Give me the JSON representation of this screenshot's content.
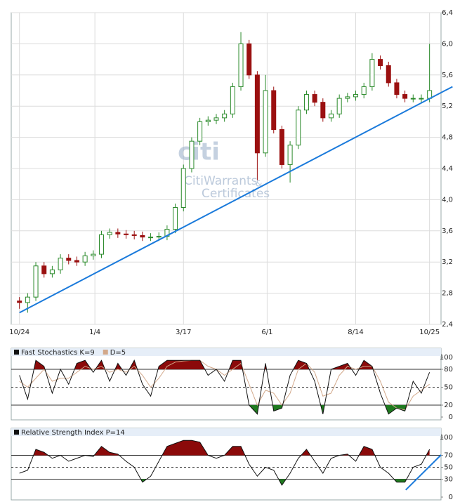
{
  "chart_data": [
    {
      "type": "candlestick",
      "watermark": [
        "citi",
        "CitiWarrants",
        "&",
        "Certificates"
      ],
      "x": [
        0,
        5,
        10,
        15,
        20,
        25,
        30,
        35,
        40,
        45,
        50,
        55,
        60,
        65,
        70,
        75,
        80,
        85,
        90,
        95,
        100,
        105,
        110,
        115,
        120,
        125,
        130,
        135,
        140,
        145,
        150,
        155,
        160,
        165,
        170,
        175,
        180,
        185,
        190,
        195,
        200,
        205,
        210,
        215,
        220,
        225,
        230,
        235,
        240,
        245,
        250
      ],
      "open": [
        2.7,
        2.68,
        2.75,
        3.15,
        3.05,
        3.1,
        3.25,
        3.22,
        3.2,
        3.28,
        3.3,
        3.55,
        3.58,
        3.56,
        3.55,
        3.54,
        3.52,
        3.52,
        3.53,
        3.62,
        3.9,
        4.4,
        4.75,
        5.0,
        5.02,
        5.05,
        5.1,
        5.45,
        6.0,
        5.6,
        4.6,
        5.4,
        4.9,
        4.45,
        4.7,
        5.15,
        5.35,
        5.25,
        5.05,
        5.1,
        5.3,
        5.32,
        5.35,
        5.45,
        5.8,
        5.72,
        5.5,
        5.35,
        5.3,
        5.3,
        5.3
      ],
      "high": [
        2.75,
        2.8,
        3.2,
        3.2,
        3.15,
        3.3,
        3.3,
        3.27,
        3.33,
        3.35,
        3.6,
        3.63,
        3.63,
        3.61,
        3.6,
        3.59,
        3.57,
        3.58,
        3.67,
        3.95,
        4.45,
        4.8,
        5.05,
        5.07,
        5.1,
        5.15,
        5.5,
        6.15,
        6.05,
        5.65,
        5.6,
        5.45,
        4.95,
        4.75,
        5.2,
        5.4,
        5.4,
        5.3,
        5.15,
        5.35,
        5.37,
        5.4,
        5.5,
        5.88,
        5.85,
        5.77,
        5.55,
        5.4,
        5.35,
        5.35,
        6.0
      ],
      "low": [
        2.6,
        2.55,
        2.7,
        3.0,
        3.0,
        3.05,
        3.17,
        3.15,
        3.15,
        3.23,
        3.25,
        3.5,
        3.51,
        3.5,
        3.49,
        3.47,
        3.47,
        3.47,
        3.48,
        3.57,
        3.85,
        4.35,
        4.7,
        4.95,
        4.97,
        5.0,
        5.05,
        5.4,
        5.55,
        4.25,
        4.55,
        4.85,
        4.4,
        4.22,
        4.65,
        5.1,
        5.2,
        5.0,
        5.0,
        5.05,
        5.25,
        5.27,
        5.3,
        5.4,
        5.67,
        5.45,
        5.3,
        5.25,
        5.25,
        5.25,
        5.25
      ],
      "close": [
        2.68,
        2.75,
        3.15,
        3.05,
        3.1,
        3.25,
        3.22,
        3.2,
        3.28,
        3.3,
        3.55,
        3.58,
        3.56,
        3.55,
        3.54,
        3.52,
        3.52,
        3.53,
        3.62,
        3.9,
        4.4,
        4.75,
        5.0,
        5.02,
        5.05,
        5.1,
        5.45,
        6.0,
        5.6,
        4.6,
        5.4,
        4.9,
        4.45,
        4.7,
        5.15,
        5.35,
        5.25,
        5.05,
        5.1,
        5.3,
        5.32,
        5.35,
        5.45,
        5.8,
        5.72,
        5.5,
        5.35,
        5.3,
        5.3,
        5.3,
        5.4
      ],
      "up_color": "#2a8a2a",
      "down_color": "#9b1010",
      "trendline": {
        "x": [
          0,
          264
        ],
        "y": [
          2.55,
          5.45
        ],
        "color": "#1a7adb"
      },
      "xlim": [
        -5,
        257
      ],
      "xticks": [
        {
          "value": 0,
          "label": "10/24"
        },
        {
          "value": 46,
          "label": "1/4"
        },
        {
          "value": 100,
          "label": "3/17"
        },
        {
          "value": 151,
          "label": "6/1"
        },
        {
          "value": 205,
          "label": "8/14"
        },
        {
          "value": 250,
          "label": "10/25"
        }
      ],
      "ylim": [
        2.4,
        6.4
      ],
      "yticks": [
        {
          "value": 2.4,
          "label": "2,4"
        },
        {
          "value": 2.8,
          "label": "2,8"
        },
        {
          "value": 3.2,
          "label": "3,2"
        },
        {
          "value": 3.6,
          "label": "3,6"
        },
        {
          "value": 4.0,
          "label": "4,0"
        },
        {
          "value": 4.4,
          "label": "4,4"
        },
        {
          "value": 4.8,
          "label": "4,8"
        },
        {
          "value": 5.2,
          "label": "5,2"
        },
        {
          "value": 5.6,
          "label": "5,6"
        },
        {
          "value": 6.0,
          "label": "6,0"
        },
        {
          "value": 6.4,
          "label": "6,4"
        }
      ],
      "grid": true
    },
    {
      "type": "oscillator",
      "x": [
        0,
        5,
        10,
        15,
        20,
        25,
        30,
        35,
        40,
        45,
        50,
        55,
        60,
        65,
        70,
        75,
        80,
        85,
        90,
        95,
        100,
        105,
        110,
        115,
        120,
        125,
        130,
        135,
        140,
        145,
        150,
        155,
        160,
        165,
        170,
        175,
        180,
        185,
        190,
        195,
        200,
        205,
        210,
        215,
        220,
        225,
        230,
        235,
        240,
        245,
        250
      ],
      "series": [
        {
          "name": "Fast Stochastics K=9",
          "color": "#111111",
          "values": [
            70,
            30,
            95,
            85,
            40,
            80,
            55,
            90,
            95,
            75,
            95,
            60,
            90,
            70,
            95,
            55,
            35,
            85,
            95,
            95,
            95,
            95,
            95,
            70,
            80,
            60,
            95,
            95,
            20,
            5,
            90,
            10,
            15,
            70,
            95,
            90,
            60,
            5,
            80,
            85,
            90,
            70,
            95,
            85,
            40,
            5,
            15,
            10,
            60,
            40,
            75
          ]
        },
        {
          "name": "D=5",
          "color": "#d2a88a",
          "values": [
            60,
            50,
            65,
            80,
            60,
            65,
            65,
            75,
            85,
            80,
            85,
            75,
            80,
            75,
            85,
            70,
            50,
            65,
            85,
            92,
            94,
            95,
            95,
            85,
            80,
            70,
            80,
            90,
            55,
            20,
            45,
            40,
            20,
            40,
            80,
            90,
            75,
            35,
            40,
            70,
            85,
            80,
            85,
            85,
            60,
            25,
            15,
            12,
            35,
            45,
            55
          ]
        }
      ],
      "upper": 80,
      "lower": 20,
      "mid": 50,
      "upper_color": "#8b0a0a",
      "lower_color": "#1f7a1f",
      "xlim": [
        -5,
        257
      ],
      "ylim": [
        0,
        100
      ],
      "yticks": [
        0,
        20,
        50,
        80,
        100
      ]
    },
    {
      "type": "oscillator",
      "x": [
        0,
        5,
        10,
        15,
        20,
        25,
        30,
        35,
        40,
        45,
        50,
        55,
        60,
        65,
        70,
        75,
        80,
        85,
        90,
        95,
        100,
        105,
        110,
        115,
        120,
        125,
        130,
        135,
        140,
        145,
        150,
        155,
        160,
        165,
        170,
        175,
        180,
        185,
        190,
        195,
        200,
        205,
        210,
        215,
        220,
        225,
        230,
        235,
        240,
        245,
        250
      ],
      "series": [
        {
          "name": "Relative Strength Index P=14",
          "color": "#111111",
          "values": [
            40,
            45,
            80,
            75,
            65,
            70,
            60,
            65,
            70,
            68,
            85,
            75,
            72,
            60,
            50,
            25,
            35,
            60,
            85,
            90,
            95,
            95,
            92,
            70,
            65,
            70,
            85,
            85,
            55,
            35,
            50,
            45,
            20,
            40,
            65,
            80,
            60,
            40,
            65,
            70,
            72,
            60,
            85,
            80,
            50,
            40,
            25,
            25,
            50,
            55,
            80
          ]
        }
      ],
      "upper": 70,
      "lower": 30,
      "mid": 50,
      "upper_color": "#8b0a0a",
      "lower_color": "#1f7a1f",
      "trendline": {
        "x": [
          235.5,
          257
        ],
        "y": [
          12,
          70.6
        ],
        "color": "#1a7adb"
      },
      "xlim": [
        -5,
        257
      ],
      "ylim": [
        0,
        100
      ],
      "yticks": [
        0,
        30,
        50,
        70,
        100
      ]
    }
  ]
}
